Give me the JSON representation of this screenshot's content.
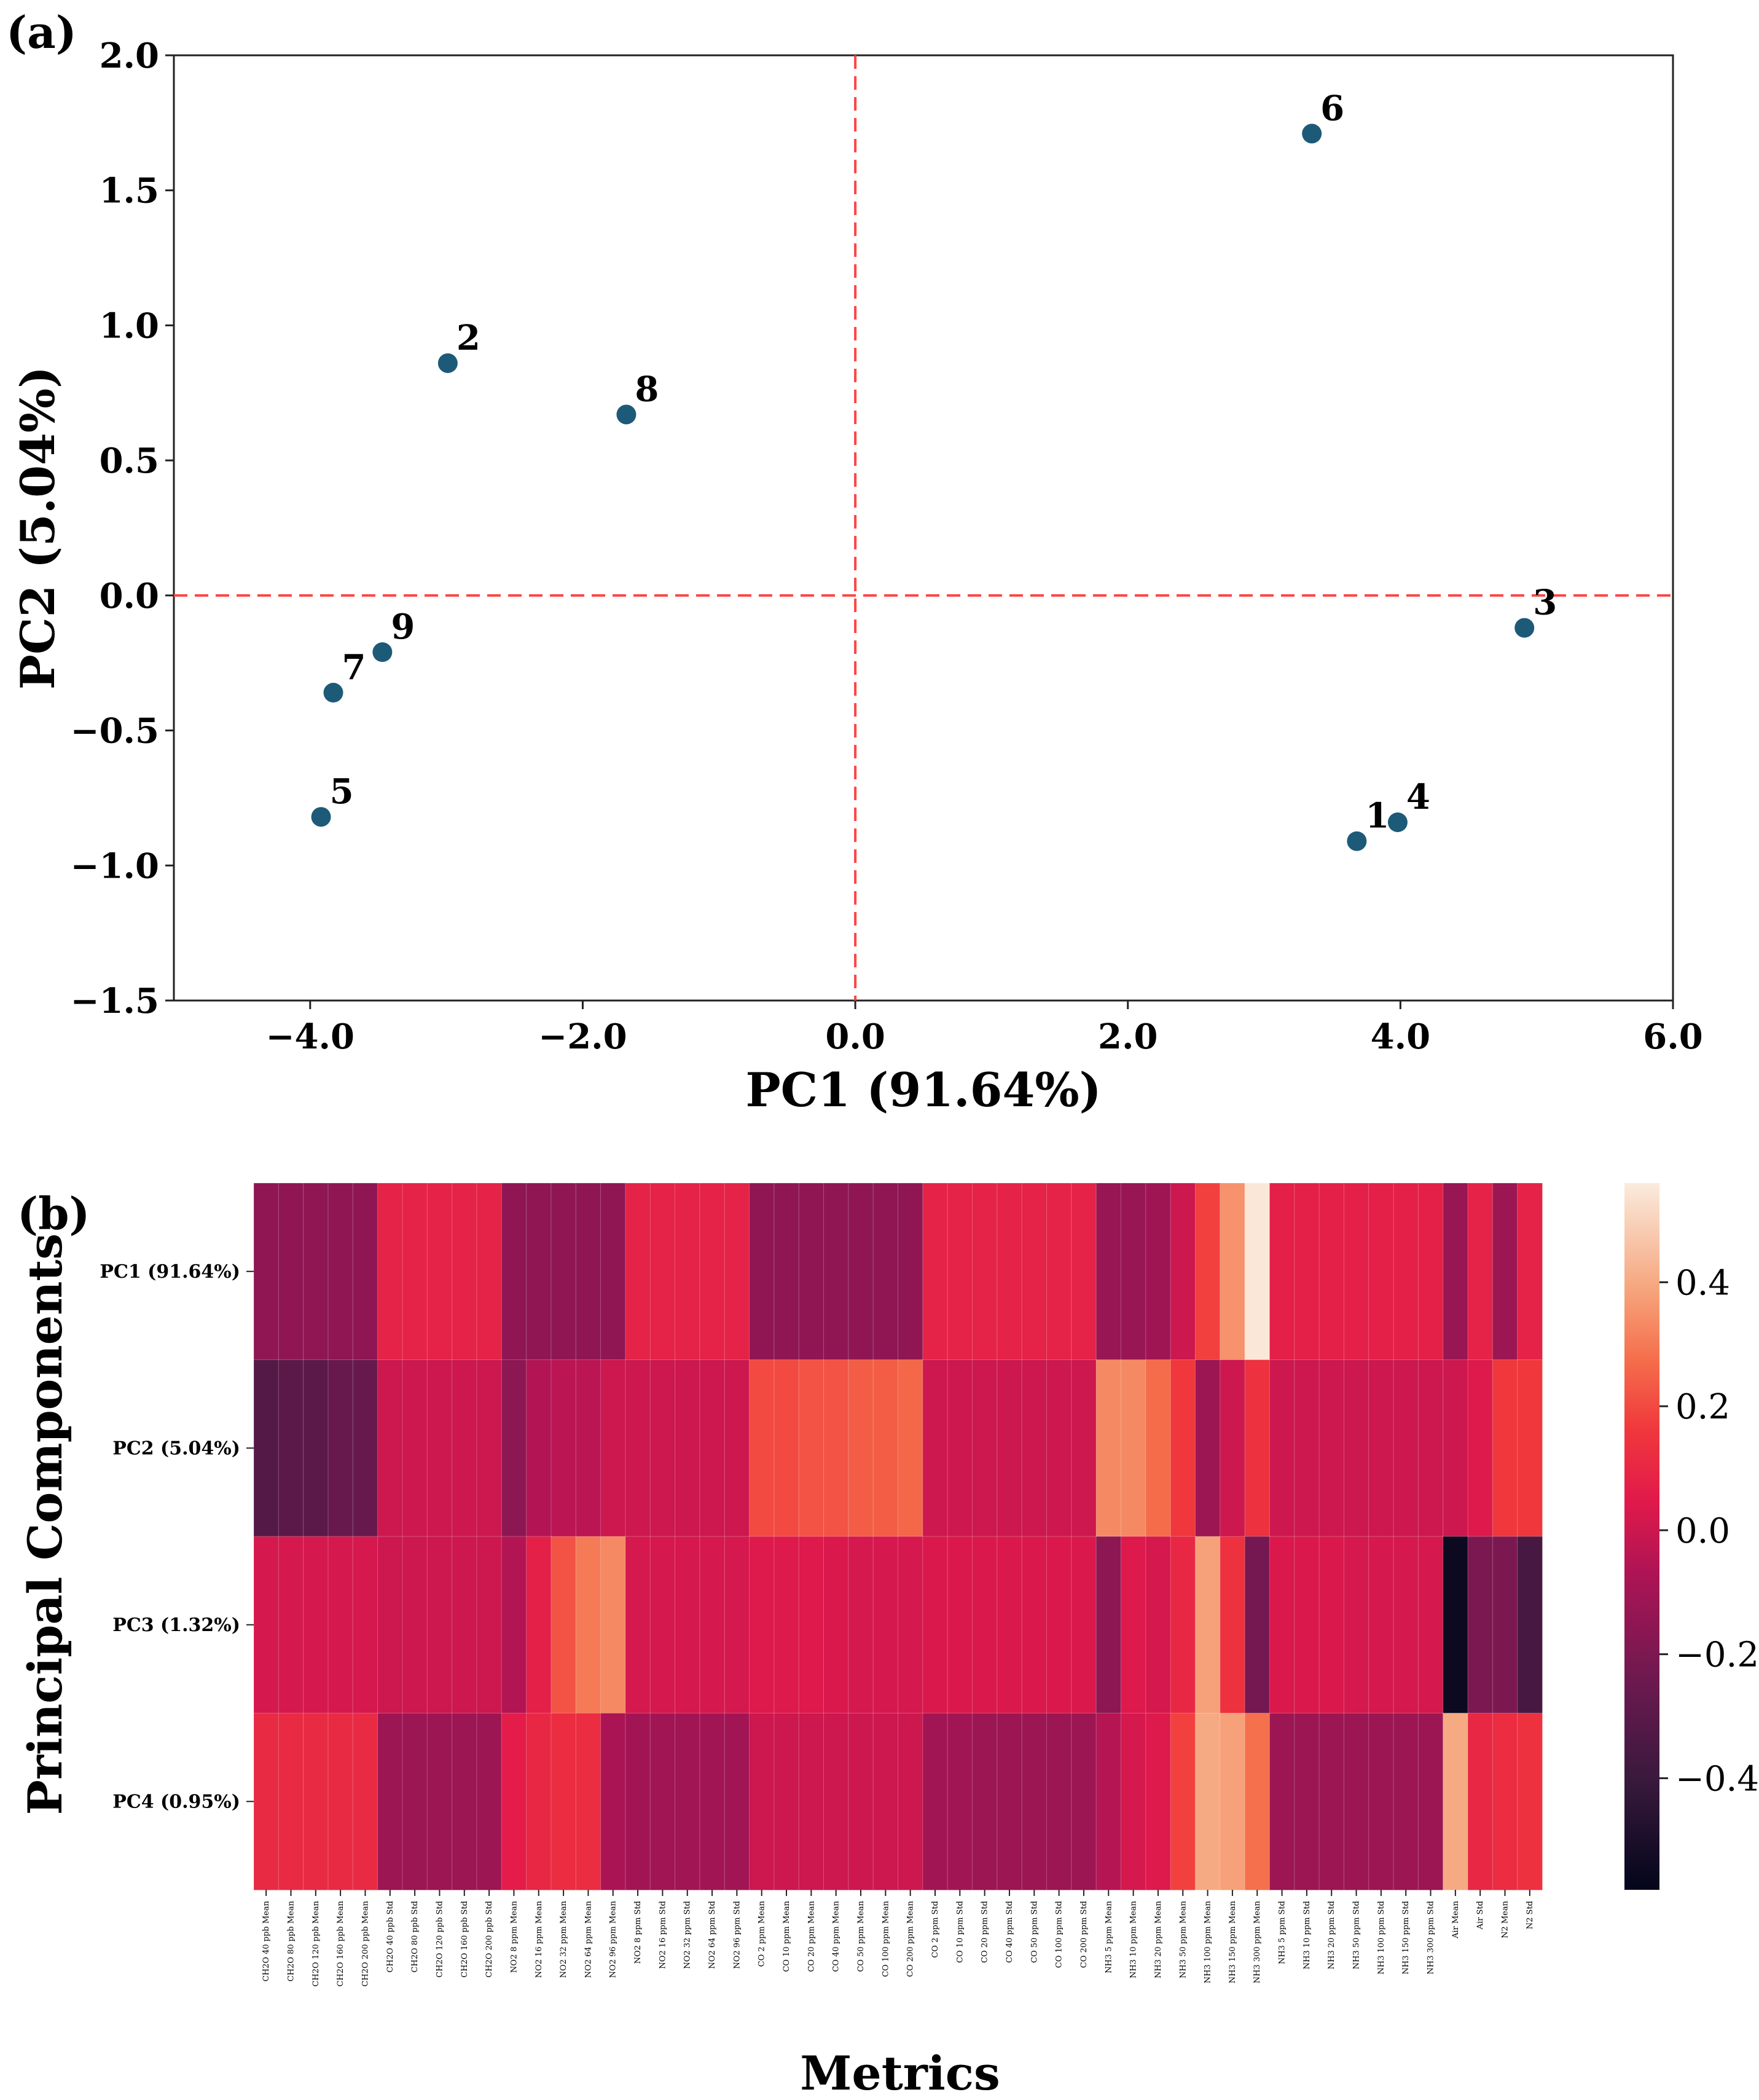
{
  "figure": {
    "panel_a_label": "(a)",
    "panel_b_label": "(b)"
  },
  "chart_data": [
    {
      "type": "scatter",
      "title": "",
      "xlabel": "PC1 (91.64%)",
      "ylabel": "PC2 (5.04%)",
      "xlim": [
        -5.0,
        6.0
      ],
      "ylim": [
        -1.5,
        2.0
      ],
      "xticks": [
        -4.0,
        -2.0,
        0.0,
        2.0,
        4.0,
        6.0
      ],
      "xtick_labels": [
        "−4.0",
        "−2.0",
        "0.0",
        "2.0",
        "4.0",
        "6.0"
      ],
      "yticks": [
        2.0,
        1.5,
        1.0,
        0.5,
        0.0,
        -0.5,
        -1.0,
        -1.5
      ],
      "ytick_labels": [
        "2.0",
        "1.5",
        "1.0",
        "0.5",
        "0.0",
        "−0.5",
        "−1.0",
        "−1.5"
      ],
      "reference_lines": {
        "x": 0.0,
        "y": 0.0,
        "color": "#ff4444",
        "style": "dashed"
      },
      "marker_color": "#1d5a78",
      "points": [
        {
          "label": "1",
          "x": 3.68,
          "y": -0.91
        },
        {
          "label": "2",
          "x": -2.99,
          "y": 0.86
        },
        {
          "label": "3",
          "x": 4.91,
          "y": -0.12
        },
        {
          "label": "4",
          "x": 3.98,
          "y": -0.84
        },
        {
          "label": "5",
          "x": -3.92,
          "y": -0.82
        },
        {
          "label": "6",
          "x": 3.35,
          "y": 1.71
        },
        {
          "label": "7",
          "x": -3.83,
          "y": -0.36
        },
        {
          "label": "8",
          "x": -1.68,
          "y": 0.67
        },
        {
          "label": "9",
          "x": -3.47,
          "y": -0.21
        }
      ]
    },
    {
      "type": "heatmap",
      "title": "",
      "xlabel": "Metrics",
      "ylabel": "Principal Components",
      "rows": [
        "PC1 (91.64%)",
        "PC2 (5.04%)",
        "PC3 (1.32%)",
        "PC4 (0.95%)"
      ],
      "columns": [
        "CH2O 40 ppb Mean",
        "CH2O 80 ppb Mean",
        "CH2O 120 ppb Mean",
        "CH2O 160 ppb Mean",
        "CH2O 200 ppb Mean",
        "CH2O 40 ppb Std",
        "CH2O 80 ppb Std",
        "CH2O 120 ppb Std",
        "CH2O 160 ppb Std",
        "CH2O 200 ppb Std",
        "NO2 8 ppm Mean",
        "NO2 16 ppm Mean",
        "NO2 32 ppm Mean",
        "NO2 64 ppm Mean",
        "NO2 96 ppm Mean",
        "NO2 8 ppm Std",
        "NO2 16 ppm Std",
        "NO2 32 ppm Std",
        "NO2 64 ppm Std",
        "NO2 96 ppm Std",
        "CO 2 ppm Mean",
        "CO 10 ppm Mean",
        "CO 20 ppm Mean",
        "CO 40 ppm Mean",
        "CO 50 ppm Mean",
        "CO 100 ppm Mean",
        "CO 200 ppm Mean",
        "CO 2 ppm Std",
        "CO 10 ppm Std",
        "CO 20 ppm Std",
        "CO 40 ppm Std",
        "CO 50 ppm Std",
        "CO 100 ppm Std",
        "CO 200 ppm Std",
        "NH3 5 ppm Mean",
        "NH3 10 ppm Mean",
        "NH3 20 ppm Mean",
        "NH3 50 ppm Mean",
        "NH3 100 ppm Mean",
        "NH3 150 ppm Mean",
        "NH3 300 ppm Mean",
        "NH3 5 ppm Std",
        "NH3 10 ppm Std",
        "NH3 20 ppm Std",
        "NH3 50 ppm Std",
        "NH3 100 ppm Std",
        "NH3 150 ppm Std",
        "NH3 300 ppm Std",
        "Air Mean",
        "Air Std",
        "N2 Mean",
        "N2 Std"
      ],
      "values": [
        [
          -0.15,
          -0.15,
          -0.15,
          -0.15,
          -0.15,
          0.08,
          0.08,
          0.08,
          0.08,
          0.08,
          -0.15,
          -0.15,
          -0.15,
          -0.15,
          -0.15,
          0.08,
          0.08,
          0.08,
          0.08,
          0.08,
          -0.15,
          -0.15,
          -0.15,
          -0.15,
          -0.15,
          -0.15,
          -0.15,
          0.08,
          0.08,
          0.08,
          0.08,
          0.08,
          0.08,
          0.08,
          -0.13,
          -0.13,
          -0.11,
          0.0,
          0.18,
          0.35,
          0.55,
          0.07,
          0.07,
          0.07,
          0.07,
          0.07,
          0.07,
          0.07,
          -0.13,
          0.08,
          -0.12,
          0.08
        ],
        [
          -0.32,
          -0.3,
          -0.3,
          -0.26,
          -0.26,
          0.0,
          0.0,
          0.0,
          0.0,
          0.0,
          -0.16,
          -0.06,
          -0.04,
          -0.04,
          0.0,
          0.0,
          0.0,
          0.0,
          0.0,
          0.0,
          0.2,
          0.2,
          0.22,
          0.22,
          0.24,
          0.24,
          0.26,
          0.0,
          0.0,
          0.0,
          0.0,
          0.0,
          0.0,
          0.0,
          0.33,
          0.33,
          0.27,
          0.16,
          -0.12,
          0.0,
          0.14,
          0.0,
          0.0,
          0.0,
          0.0,
          0.0,
          0.0,
          0.0,
          0.0,
          0.04,
          0.16,
          0.16
        ],
        [
          0.02,
          0.02,
          0.02,
          0.02,
          0.02,
          0.0,
          0.0,
          0.0,
          0.0,
          0.0,
          -0.06,
          0.07,
          0.22,
          0.3,
          0.33,
          0.02,
          0.02,
          0.02,
          0.02,
          0.02,
          0.04,
          0.04,
          0.04,
          0.03,
          0.02,
          0.02,
          0.02,
          0.03,
          0.03,
          0.03,
          0.03,
          0.03,
          0.03,
          0.03,
          -0.16,
          0.04,
          0.02,
          0.1,
          0.38,
          0.14,
          -0.22,
          0.03,
          0.03,
          0.03,
          0.02,
          0.02,
          0.02,
          0.02,
          -0.55,
          -0.2,
          -0.2,
          -0.36
        ],
        [
          0.11,
          0.11,
          0.11,
          0.11,
          0.11,
          -0.12,
          -0.12,
          -0.12,
          -0.12,
          -0.12,
          0.06,
          0.1,
          0.12,
          0.12,
          -0.08,
          -0.1,
          -0.1,
          -0.1,
          -0.1,
          -0.1,
          0.0,
          0.0,
          0.0,
          0.0,
          0.0,
          0.0,
          0.0,
          -0.1,
          -0.1,
          -0.12,
          -0.12,
          -0.12,
          -0.12,
          -0.12,
          -0.05,
          0.02,
          0.04,
          0.18,
          0.4,
          0.38,
          0.28,
          -0.12,
          -0.12,
          -0.12,
          -0.12,
          -0.12,
          -0.12,
          -0.12,
          0.4,
          0.1,
          0.12,
          0.14
        ]
      ],
      "colorbar": {
        "vmin": -0.58,
        "vmax": 0.56,
        "ticks": [
          0.4,
          0.2,
          0.0,
          -0.2,
          -0.4
        ],
        "tick_labels": [
          "0.4",
          "0.2",
          "0.0",
          "−0.2",
          "−0.4"
        ]
      }
    }
  ]
}
